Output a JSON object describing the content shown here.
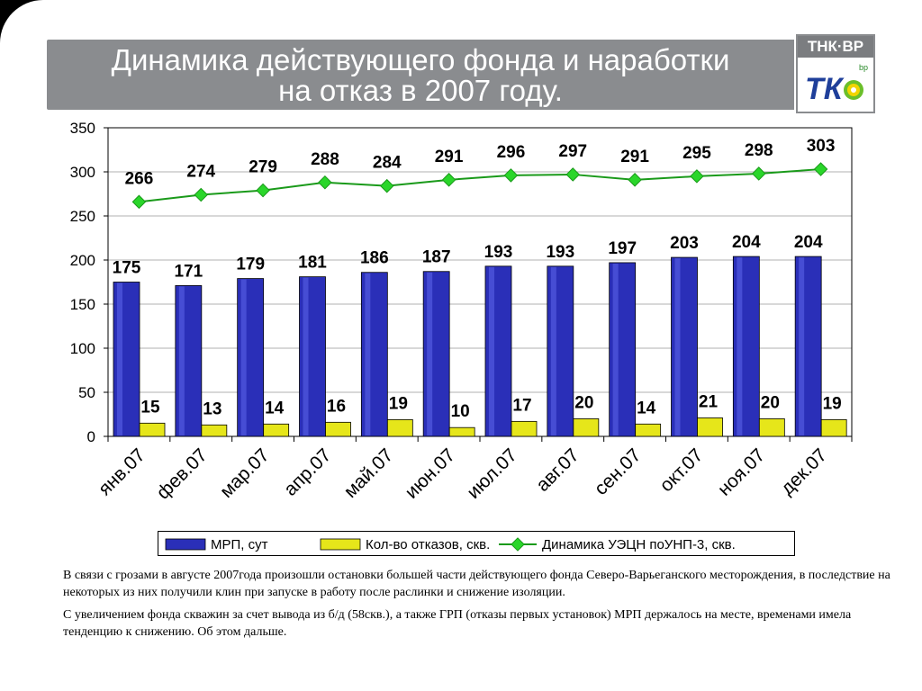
{
  "title": {
    "line1": "Динамика действующего фонда и наработки",
    "line2": "на отказ в 2007 году."
  },
  "logo": {
    "top_text": "ТНК·ВР",
    "bp_text": "bp"
  },
  "colors": {
    "bar_mrp": "#2a2fb8",
    "bar_fail": "#e6e61a",
    "line": "#1a9a1a",
    "title_bg": "#8a8c8f"
  },
  "chart_data": {
    "type": "bar",
    "categories": [
      "янв.07",
      "фев.07",
      "мар.07",
      "апр.07",
      "май.07",
      "июн.07",
      "июл.07",
      "авг.07",
      "сен.07",
      "окт.07",
      "ноя.07",
      "дек.07"
    ],
    "series": [
      {
        "name": "МРП, сут",
        "type": "bar",
        "values": [
          175,
          171,
          179,
          181,
          186,
          187,
          193,
          193,
          197,
          203,
          204,
          204
        ]
      },
      {
        "name": "Кол-во отказов, скв.",
        "type": "bar",
        "values": [
          15,
          13,
          14,
          16,
          19,
          10,
          17,
          20,
          14,
          21,
          20,
          19
        ]
      },
      {
        "name": "Динамика УЭЦН поУНП-3, скв.",
        "type": "line",
        "values": [
          266,
          274,
          279,
          288,
          284,
          291,
          296,
          297,
          291,
          295,
          298,
          303
        ]
      }
    ],
    "ylim": [
      0,
      350
    ],
    "yticks": [
      0,
      50,
      100,
      150,
      200,
      250,
      300,
      350
    ],
    "grid": true,
    "legend_position": "bottom"
  },
  "description": {
    "p1": "В связи с грозами в августе 2007года произошли остановки большей части действующего фонда Северо-Варьеганского месторождения, в последствие на некоторых из них получили клин при запуске в работу после раслинки и снижение изоляции.",
    "p2": "С увеличением фонда скважин за счет вывода из б/д (58скв.), а также ГРП (отказы первых установок) МРП держалось на месте, временами имела тенденцию к снижению. Об этом дальше."
  }
}
